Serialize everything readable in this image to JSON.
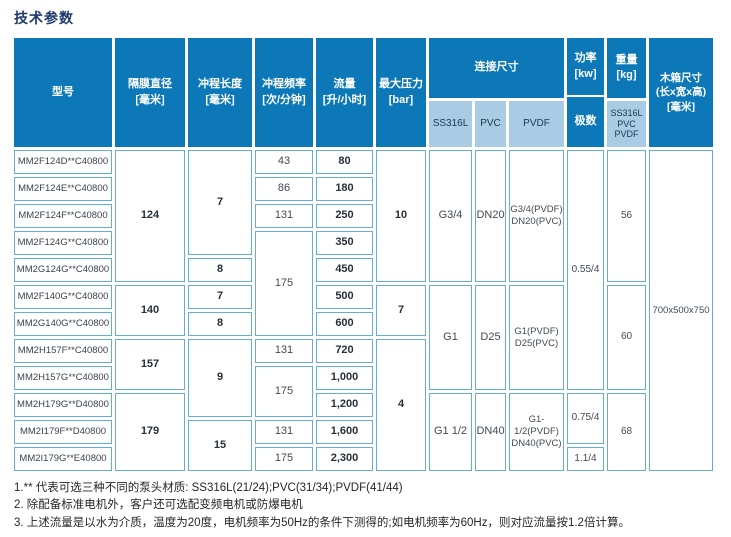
{
  "title": "技术参数",
  "colors": {
    "header_blue": "#0d78b8",
    "subheader_blue": "#a9cbe3",
    "cell_border_blue": "#64add5",
    "title_navy": "#1d3a6a"
  },
  "table": {
    "header": {
      "model": "型号",
      "diaphragm": [
        "隔膜直径",
        "[毫米]"
      ],
      "stroke_length": [
        "冲程长度",
        "[毫米]"
      ],
      "stroke_frequency": [
        "冲程频率",
        "[次/分钟]"
      ],
      "flow": [
        "流量",
        "[升/小时]"
      ],
      "max_pressure": [
        "最大压力",
        "[bar]"
      ],
      "connection": "连接尺寸",
      "conn_subs": [
        "SS316L",
        "PVC",
        "PVDF"
      ],
      "power_top": [
        "功率",
        "[kw]"
      ],
      "power_bottom": "极数",
      "weight_top": [
        "重量",
        "[kg]"
      ],
      "weight_sub": [
        "SS316L",
        "PVC",
        "PVDF"
      ],
      "crate": [
        "木箱尺寸",
        "(长x宽x高)",
        "[毫米]"
      ]
    },
    "cells": [
      {
        "key": "model",
        "col": 1,
        "row": 1,
        "span": 1,
        "text": "MM2F124D**C40800"
      },
      {
        "key": "model",
        "col": 1,
        "row": 2,
        "span": 1,
        "text": "MM2F124E**C40800"
      },
      {
        "key": "model",
        "col": 1,
        "row": 3,
        "span": 1,
        "text": "MM2F124F**C40800"
      },
      {
        "key": "model",
        "col": 1,
        "row": 4,
        "span": 1,
        "text": "MM2F124G**C40800"
      },
      {
        "key": "model",
        "col": 1,
        "row": 5,
        "span": 1,
        "text": "MM2G124G**C40800"
      },
      {
        "key": "model",
        "col": 1,
        "row": 6,
        "span": 1,
        "text": "MM2F140G**C40800"
      },
      {
        "key": "model",
        "col": 1,
        "row": 7,
        "span": 1,
        "text": "MM2G140G**C40800"
      },
      {
        "key": "model",
        "col": 1,
        "row": 8,
        "span": 1,
        "text": "MM2H157F**C40800"
      },
      {
        "key": "model",
        "col": 1,
        "row": 9,
        "span": 1,
        "text": "MM2H157G**C40800"
      },
      {
        "key": "model",
        "col": 1,
        "row": 10,
        "span": 1,
        "text": "MM2H179G**D40800"
      },
      {
        "key": "model",
        "col": 1,
        "row": 11,
        "span": 1,
        "text": "MM2I179F**D40800"
      },
      {
        "key": "model",
        "col": 1,
        "row": 12,
        "span": 1,
        "text": "MM2I179G**E40800"
      },
      {
        "key": "diaphragm",
        "col": 2,
        "row": 1,
        "span": 5,
        "text": "124",
        "bold": true
      },
      {
        "key": "diaphragm",
        "col": 2,
        "row": 6,
        "span": 2,
        "text": "140",
        "bold": true
      },
      {
        "key": "diaphragm",
        "col": 2,
        "row": 8,
        "span": 2,
        "text": "157",
        "bold": true
      },
      {
        "key": "diaphragm",
        "col": 2,
        "row": 10,
        "span": 3,
        "text": "179",
        "bold": true
      },
      {
        "key": "stroke-length",
        "col": 3,
        "row": 1,
        "span": 4,
        "text": "7",
        "bold": true
      },
      {
        "key": "stroke-length",
        "col": 3,
        "row": 5,
        "span": 1,
        "text": "8",
        "bold": true
      },
      {
        "key": "stroke-length",
        "col": 3,
        "row": 6,
        "span": 1,
        "text": "7",
        "bold": true
      },
      {
        "key": "stroke-length",
        "col": 3,
        "row": 7,
        "span": 1,
        "text": "8",
        "bold": true
      },
      {
        "key": "stroke-length",
        "col": 3,
        "row": 8,
        "span": 3,
        "text": "9",
        "bold": true
      },
      {
        "key": "stroke-length",
        "col": 3,
        "row": 11,
        "span": 2,
        "text": "15",
        "bold": true
      },
      {
        "key": "stroke-frequency",
        "col": 4,
        "row": 1,
        "span": 1,
        "text": "43"
      },
      {
        "key": "stroke-frequency",
        "col": 4,
        "row": 2,
        "span": 1,
        "text": "86"
      },
      {
        "key": "stroke-frequency",
        "col": 4,
        "row": 3,
        "span": 1,
        "text": "131"
      },
      {
        "key": "stroke-frequency",
        "col": 4,
        "row": 4,
        "span": 4,
        "text": "175"
      },
      {
        "key": "stroke-frequency",
        "col": 4,
        "row": 8,
        "span": 1,
        "text": "131"
      },
      {
        "key": "stroke-frequency",
        "col": 4,
        "row": 9,
        "span": 2,
        "text": "175"
      },
      {
        "key": "stroke-frequency",
        "col": 4,
        "row": 11,
        "span": 1,
        "text": "131"
      },
      {
        "key": "stroke-frequency",
        "col": 4,
        "row": 12,
        "span": 1,
        "text": "175"
      },
      {
        "key": "flow",
        "col": 5,
        "row": 1,
        "span": 1,
        "text": "80",
        "bold": true
      },
      {
        "key": "flow",
        "col": 5,
        "row": 2,
        "span": 1,
        "text": "180",
        "bold": true
      },
      {
        "key": "flow",
        "col": 5,
        "row": 3,
        "span": 1,
        "text": "250",
        "bold": true
      },
      {
        "key": "flow",
        "col": 5,
        "row": 4,
        "span": 1,
        "text": "350",
        "bold": true
      },
      {
        "key": "flow",
        "col": 5,
        "row": 5,
        "span": 1,
        "text": "450",
        "bold": true
      },
      {
        "key": "flow",
        "col": 5,
        "row": 6,
        "span": 1,
        "text": "500",
        "bold": true
      },
      {
        "key": "flow",
        "col": 5,
        "row": 7,
        "span": 1,
        "text": "600",
        "bold": true
      },
      {
        "key": "flow",
        "col": 5,
        "row": 8,
        "span": 1,
        "text": "720",
        "bold": true
      },
      {
        "key": "flow",
        "col": 5,
        "row": 9,
        "span": 1,
        "text": "1,000",
        "bold": true
      },
      {
        "key": "flow",
        "col": 5,
        "row": 10,
        "span": 1,
        "text": "1,200",
        "bold": true
      },
      {
        "key": "flow",
        "col": 5,
        "row": 11,
        "span": 1,
        "text": "1,600",
        "bold": true
      },
      {
        "key": "flow",
        "col": 5,
        "row": 12,
        "span": 1,
        "text": "2,300",
        "bold": true
      },
      {
        "key": "max-pressure",
        "col": 6,
        "row": 1,
        "span": 5,
        "text": "10",
        "bold": true
      },
      {
        "key": "max-pressure",
        "col": 6,
        "row": 6,
        "span": 2,
        "text": "7",
        "bold": true
      },
      {
        "key": "max-pressure",
        "col": 6,
        "row": 8,
        "span": 5,
        "text": "4",
        "bold": true
      },
      {
        "key": "conn-ss316l",
        "col": 7,
        "row": 1,
        "span": 5,
        "text": "G3/4"
      },
      {
        "key": "conn-ss316l",
        "col": 7,
        "row": 6,
        "span": 4,
        "text": "G1"
      },
      {
        "key": "conn-ss316l",
        "col": 7,
        "row": 10,
        "span": 3,
        "text": "G1 1/2"
      },
      {
        "key": "conn-pvc",
        "col": 8,
        "row": 1,
        "span": 5,
        "text": "DN20"
      },
      {
        "key": "conn-pvc",
        "col": 8,
        "row": 6,
        "span": 4,
        "text": "D25"
      },
      {
        "key": "conn-pvc",
        "col": 8,
        "row": 10,
        "span": 3,
        "text": "DN40"
      },
      {
        "key": "conn-pvdf",
        "col": 9,
        "row": 1,
        "span": 5,
        "text": [
          "G3/4(PVDF)",
          "DN20(PVC)"
        ]
      },
      {
        "key": "conn-pvdf",
        "col": 9,
        "row": 6,
        "span": 4,
        "text": [
          "G1(PVDF)",
          "D25(PVC)"
        ]
      },
      {
        "key": "conn-pvdf",
        "col": 9,
        "row": 10,
        "span": 3,
        "text": [
          "G1-1/2(PVDF)",
          "DN40(PVC)"
        ]
      },
      {
        "key": "power",
        "col": 10,
        "row": 1,
        "span": 9,
        "text": "0.55/4"
      },
      {
        "key": "power",
        "col": 10,
        "row": 10,
        "span": 2,
        "text": "0.75/4"
      },
      {
        "key": "power",
        "col": 10,
        "row": 12,
        "span": 1,
        "text": "1.1/4"
      },
      {
        "key": "weight",
        "col": 11,
        "row": 1,
        "span": 5,
        "text": "56"
      },
      {
        "key": "weight",
        "col": 11,
        "row": 6,
        "span": 4,
        "text": "60"
      },
      {
        "key": "weight",
        "col": 11,
        "row": 10,
        "span": 3,
        "text": "68"
      },
      {
        "key": "crate-size",
        "col": 12,
        "row": 1,
        "span": 12,
        "text": "700x500x750"
      }
    ]
  },
  "footnotes": [
    "1.** 代表可选三种不同的泵头材质: SS316L(21/24);PVC(31/34);PVDF(41/44)",
    "2. 除配备标准电机外，客户还可选配变频电机或防爆电机",
    "3. 上述流量是以水为介质，温度为20度，电机频率为50Hz的条件下测得的;如电机频率为60Hz，则对应流量按1.2倍计算。"
  ]
}
